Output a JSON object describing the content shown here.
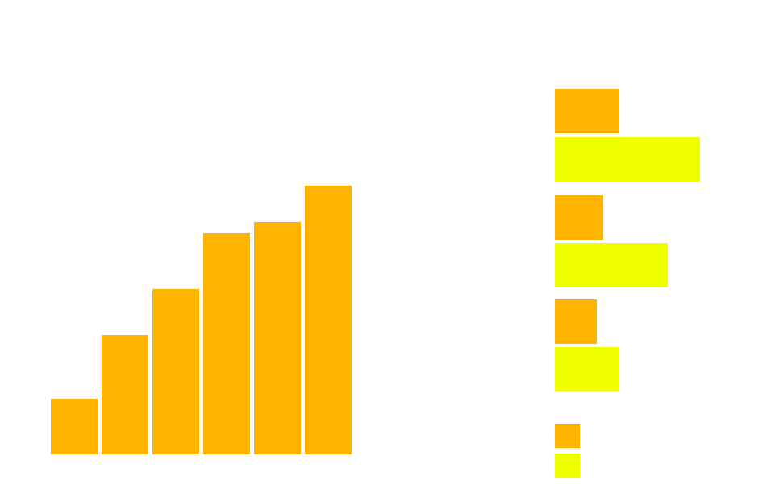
{
  "chart_data": [
    {
      "type": "bar",
      "values": [
        69,
        148,
        205,
        274,
        288,
        333
      ],
      "color": "#ffb400"
    },
    {
      "type": "barh",
      "series": [
        {
          "color": "#ffb400",
          "values": [
            80,
            60,
            52,
            31
          ]
        },
        {
          "color": "#eeff00",
          "values": [
            180,
            140,
            80,
            31
          ]
        }
      ]
    }
  ]
}
